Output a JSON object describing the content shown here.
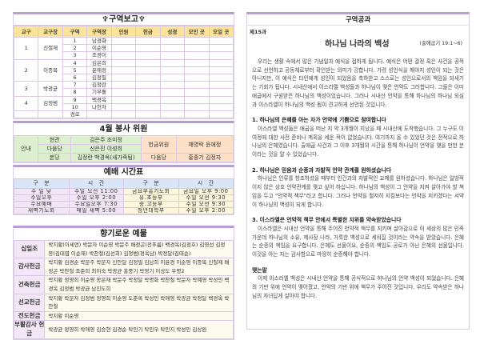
{
  "district_report": {
    "title": "♆구역보고♆",
    "headers": [
      "교구",
      "교구장",
      "구역",
      "구역장",
      "인원",
      "헌금",
      "성경",
      "모인 곳",
      "모일 곳"
    ],
    "parishes": [
      {
        "no": "1",
        "leader": "신철재",
        "rows": [
          [
            "1",
            "남경화"
          ],
          [
            "2",
            "이순영"
          ],
          [
            "3",
            "조경이"
          ]
        ]
      },
      {
        "no": "2",
        "leader": "이종목",
        "rows": [
          [
            "4",
            "김은희"
          ],
          [
            "5",
            "윤애정"
          ],
          [
            "6",
            "김정필"
          ]
        ]
      },
      {
        "no": "3",
        "leader": "박광균",
        "rows": [
          [
            "7",
            "김정란"
          ],
          [
            "8",
            "기부돌"
          ]
        ]
      },
      {
        "no": "4",
        "leader": "김정범",
        "rows": [
          [
            "9",
            "백경옥"
          ],
          [
            "10",
            "나헌자"
          ]
        ]
      }
    ],
    "extra": "경로"
  },
  "volunteers": {
    "title": "4월 봉사 위원",
    "guide": "안내",
    "rows": [
      [
        "현관",
        "김은주 조미정"
      ],
      [
        "다움당",
        "신은진 이성희"
      ],
      [
        "본당",
        "김정란 백경옥(새가족팀)"
      ]
    ],
    "offering_label": "헌금위원",
    "offering_names": "채명락 윤애정",
    "place2": "다움당",
    "names2": "홍중기 김정자"
  },
  "worship": {
    "title": "예배 시간표",
    "headers": [
      "구　분",
      "시　간",
      "구　분",
      "시　간"
    ],
    "rows": [
      [
        "주 일 낮",
        "주일 오전 11:00",
        "금요부흥기도회",
        "금요일 오후 9:00"
      ],
      [
        "주일오후",
        "주일 오후 2:00",
        "유.초등부",
        "주일 오전 9:30"
      ],
      [
        "수요예배",
        "수요일오후 7:30",
        "중.고등부",
        "주일 오전 9:30"
      ],
      [
        "새벽기도회",
        "매일 새벽 5:00",
        "청년대학부",
        "주일 오후 2:00"
      ]
    ]
  },
  "offerings": {
    "title": "향기로운 예물",
    "rows": [
      {
        "label": "십일조",
        "names": "박지황(이세연) 박문자 이순영 박문주 배정곤(전푸름) 백경옥(김정호) 김영선 김정봉(김대엽 이순재) 박찬철(김선희) 김정범(정옥남) 박정달(김태순)"
      },
      {
        "label": "감사헌금",
        "names": "박지황 김경순 박문주 박문자 신안달 김정필 김남희 이윤경 이순영 이종목 신철재 배정곤 박찬철 조준희 최이숙 박광균 홍중기 박영기 이상도 우명2"
      },
      {
        "label": "건축헌금",
        "names": "박지황 정영희 이순영 장은재 박문주 박정달 박명화 박찬철 박문자 박예영 박성민 백경옥 김정범 박광균 남진도희"
      },
      {
        "label": "선교헌금",
        "names": "박지황 박문자 김정범 정영희 이순영 도준록 박성민 박애영 박광균 박정달 백경옥 박찬철"
      },
      {
        "label": "전도헌금",
        "names": "박지황 이순영"
      },
      {
        "label": "부활감사 헌금",
        "names": "박광균 정영희 박애영 김승현 김경순 탁민기 탁민우 탁민지 박성민 김상완"
      }
    ]
  },
  "lesson": {
    "title": "구역공과",
    "number": "제15과",
    "heading": "하나님 나라의 백성",
    "reference": "(출애굽기 19:1~6)",
    "intro": "우리는 생활 속에서 많은 기념일과 예식을 접하게 됩니다. 예식은 어떤 결정 혹은 사건을 공적으로 선언하고 공동체로부터 확인받는 의미가 강합니다. 가령 성인식을 해야지 성인이 되는 것은 아니지만, 이 예식은 타인에게 성인이 되었음을 축하받고 스스로는 성인으로서의 책임을 되새기는 기회가 됩니다. 시내산에서 이스라엘 백성들과 하나님이 맺은 언약도 그러합니다. 그들은 이미 애굽에서 구원받은 하나님의 백성이었습니다. 그러나 시내산 언약을 통해 하나님의 하나님 되심과 이스라엘이 하나님의 백성 됨이 견고하게 선언된 것입니다.",
    "sections": [
      {
        "heading": "1. 하나님의 은혜를 아는 자가 언약에 기쁨으로 참여합니다",
        "text": "이스라엘 백성들은 애굽을 떠난 지 약 3개월이 지났을 때 시내산에 도착했습니다. 그 누구도 이 여정에 대한 사전 준비나 계획을 세운 적이 없었습니다. 여기까지 올 수 있었던 것은 전적으로 하나님의 은혜였습니다. 출애굽 사건과 그 이후 3개월의 시간을 통해 하나님이 언약을 맺을 만한 분이라는 것을 알 수 있었습니다."
      },
      {
        "heading": "2. 하나님은 믿음과 순종과 자발적 언약 관계를 원하셨습니다",
        "text": "하나님은 인류를 창조하셨을 때부터 인간과의 자발적인 교제를 원하셨습니다. 하나님은 일방적이지 않은 상호 언약관계를 맺고 싶어 하십니다. 하나님의 백성이 그 언약을 지켜 살아가야 할 책임을 두고 \"언약적 책무\"라고 합니다. 그러나 언약을 철저히 지킴보다는 언약을 지키겠다는 서약이 하나님의 백성이 되게 합니다."
      },
      {
        "heading": "3. 이스라엘은 언약적 책무 안에서 특별한 지위를 약속받았습니다",
        "text": "이스라엘은 시내산 언약을 통해 주어진 언약적 책무를 지키며 살아감으로 이 세상의 많은 민족 가운데 하나님의 소유, 제사장 나라, 거룩한 백성으로 세워질 것이라는 약속을 받았습니다. 은혜는 순종의 책임을 요구합니다. 은혜도 선물이요, 순종의 책임도 공로가 아닌 은혜의 선물입니다. 이것을 아는 자는 감사함으로 마땅히 순종해야 합니다."
      },
      {
        "heading": "맺는말",
        "text": "이제 이스라엘 백성은 시내산 언약을 통해 공식적으로 하나님의 언약 백성이 되었습니다. 은혜의 기반 위에 언약이 맺어졌고, 언약의 기반 위에 책무가 주어진 것입니다. 우리도 약속받은 하나님의 자녀답게 살아야 합니다."
      }
    ]
  }
}
